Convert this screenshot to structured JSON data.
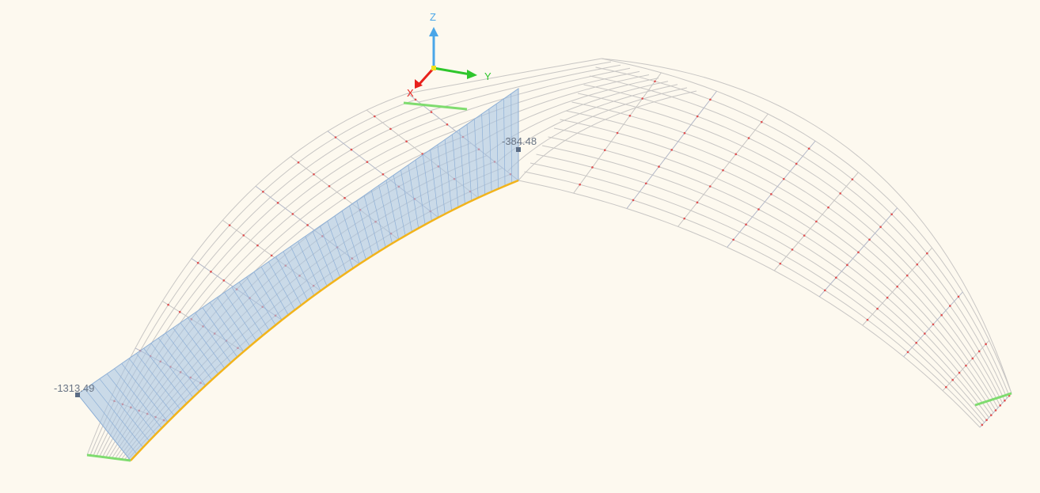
{
  "viewport": {
    "background": "#fdf9ef",
    "axes": {
      "x_label": "X",
      "y_label": "Y",
      "z_label": "Z",
      "x_color": "#e8211c",
      "y_color": "#2fc62c",
      "z_color": "#4aa6e8"
    }
  },
  "result_diagram": {
    "color": "#a9c4e3",
    "max_label": "-1313.49",
    "min_label": "-384.48"
  },
  "model": {
    "mesh_color": "#c8c6c4",
    "node_color": "#e05050",
    "highlighted_edge_color": "#f2b41c",
    "support_color": "#7fdc6f"
  }
}
